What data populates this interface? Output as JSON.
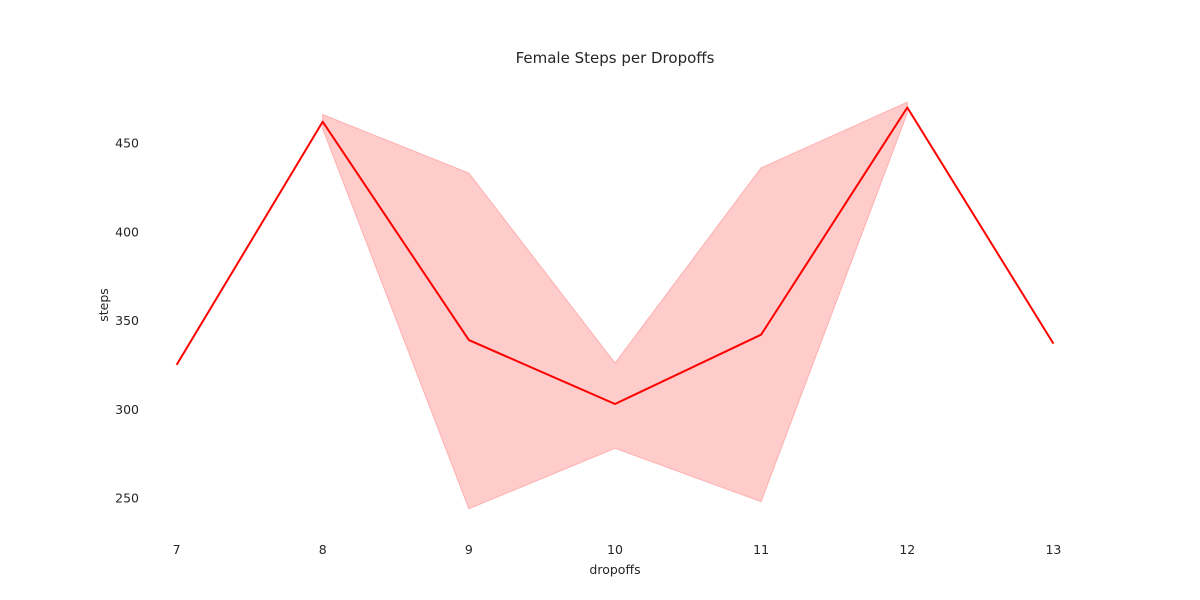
{
  "chart_data": {
    "type": "line",
    "title": "Female Steps per Dropoffs",
    "xlabel": "dropoffs",
    "ylabel": "steps",
    "x": [
      7,
      8,
      9,
      10,
      11,
      12,
      13
    ],
    "xlim": [
      6.9,
      13.1
    ],
    "ylim": [
      232,
      481
    ],
    "yticks": [
      250,
      300,
      350,
      400,
      450
    ],
    "grid": false,
    "legend": "none",
    "series": [
      {
        "values": [
          325,
          462,
          339,
          303,
          342,
          470,
          337
        ],
        "ci_upper": [
          null,
          466,
          433,
          326,
          436,
          473,
          null
        ],
        "ci_lower": [
          null,
          458,
          244,
          278,
          248,
          467,
          null
        ],
        "color": "#ff0000",
        "ci_color": "#ffcccc",
        "ci_edge_color": "#ffb0b0"
      }
    ]
  }
}
